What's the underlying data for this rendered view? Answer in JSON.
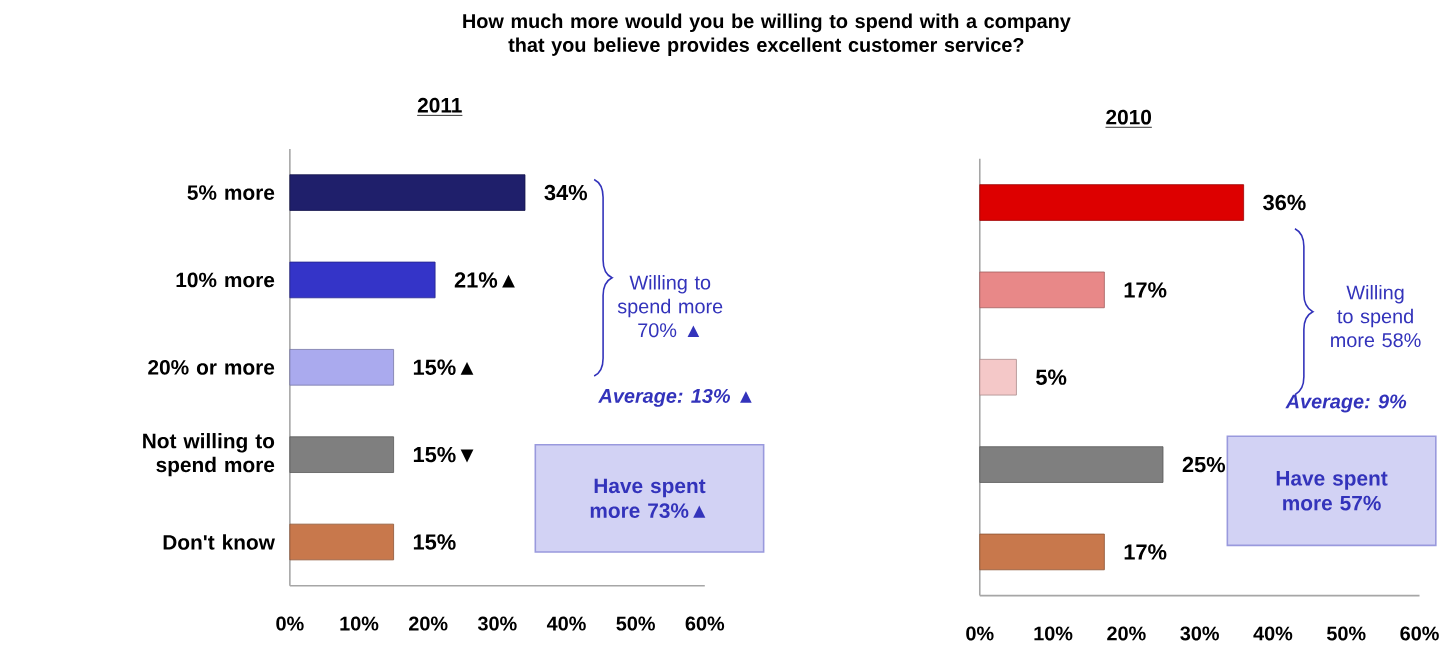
{
  "chart_data": [
    {
      "type": "bar",
      "orientation": "horizontal",
      "title": "How much more would you be willing to spend with a company that you believe provides excellent customer service?",
      "subtitle": "2011",
      "categories": [
        "5% more",
        "10% more",
        "20% or more",
        "Not willing to spend more",
        "Don't know"
      ],
      "values": [
        34,
        21,
        15,
        15,
        15
      ],
      "colors": [
        "#1f1f6b",
        "#3434c8",
        "#aaaaee",
        "#7f7f7f",
        "#c8784c"
      ],
      "value_labels": [
        "34%",
        "21%▲",
        "15%▲",
        "15%▼",
        "15%"
      ],
      "xlim": [
        0,
        60
      ],
      "xticks": [
        {
          "value": 0,
          "label": "0%"
        },
        {
          "value": 10,
          "label": "10%"
        },
        {
          "value": 20,
          "label": "20%"
        },
        {
          "value": 30,
          "label": "30%"
        },
        {
          "value": 40,
          "label": "40%"
        },
        {
          "value": 50,
          "label": "50%"
        },
        {
          "value": 60,
          "label": "60%"
        }
      ],
      "annotations": [
        "Willing to spend more 70% ▲",
        "Average: 13% ▲",
        "Have spent more 73%▲"
      ]
    },
    {
      "type": "bar",
      "orientation": "horizontal",
      "title": "2010",
      "categories": [
        null,
        null,
        null,
        null,
        null
      ],
      "values": [
        36,
        17,
        5,
        25,
        17
      ],
      "colors": [
        "#dd0000",
        "#e88888",
        "#f4c8c8",
        "#7f7f7f",
        "#c8784c"
      ],
      "value_labels": [
        "36%",
        "17%",
        "5%",
        "25%",
        "17%"
      ],
      "xlim": [
        0,
        60
      ],
      "xticks": [
        {
          "value": 0,
          "label": "0%"
        },
        {
          "value": 10,
          "label": "10%"
        },
        {
          "value": 20,
          "label": "20%"
        },
        {
          "value": 30,
          "label": "30%"
        },
        {
          "value": 40,
          "label": "40%"
        },
        {
          "value": 50,
          "label": "50%"
        },
        {
          "value": 60,
          "label": "60%"
        }
      ],
      "tick_labels": "x",
      "annotations": [
        "Willing to spend more 58%",
        "Average: 9%",
        "Have spent more 57%"
      ]
    }
  ]
}
